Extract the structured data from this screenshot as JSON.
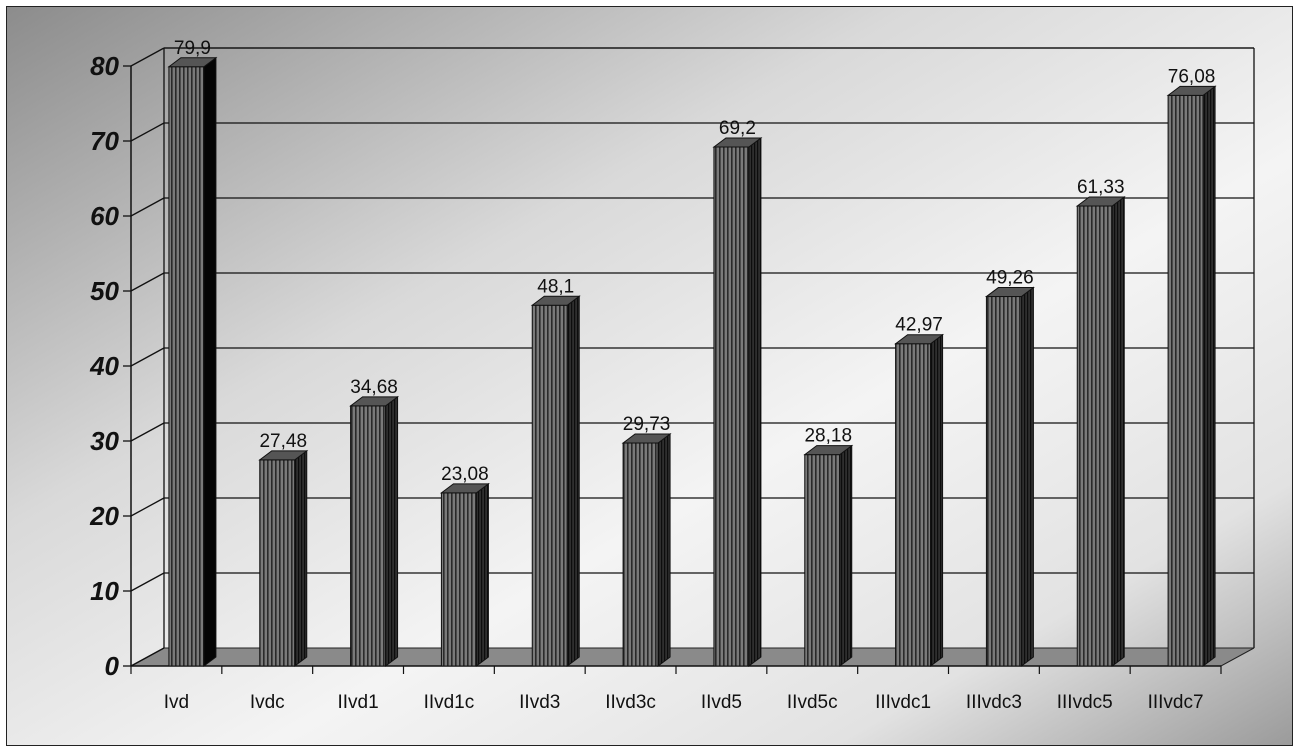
{
  "chart_data": {
    "type": "bar",
    "title": "",
    "xlabel": "",
    "ylabel": "",
    "categories": [
      "Ivd",
      "Ivdc",
      "IIvd1",
      "IIvd1c",
      "IIvd3",
      "IIvd3c",
      "IIvd5",
      "IIvd5c",
      "IIIvdc1",
      "IIIvdc3",
      "IIIvdc5",
      "IIIvdc7"
    ],
    "values": [
      79.9,
      27.48,
      34.68,
      23.08,
      48.1,
      29.73,
      69.2,
      28.18,
      42.97,
      49.26,
      61.33,
      76.08
    ],
    "data_labels": [
      "79,9",
      "27,48",
      "34,68",
      "23,08",
      "48,1",
      "29,73",
      "69,2",
      "28,18",
      "42,97",
      "49,26",
      "61,33",
      "76,08"
    ],
    "ylim": [
      0,
      80
    ],
    "yticks": [
      "0",
      "10",
      "20",
      "30",
      "40",
      "50",
      "60",
      "70",
      "80"
    ],
    "grid": true,
    "legend": "none",
    "bar_style": "3d-vertical-stripes",
    "colors": {
      "bar_front": "#6a6a6a",
      "bar_stripe": "#2a2a2a",
      "bar_side": "#1a1a1a",
      "bar_top": "#555555",
      "floor": "#8a8a8a",
      "gridline": "#111111",
      "background_light": "#f4f4f4",
      "background_dark": "#8c8c8c"
    }
  }
}
